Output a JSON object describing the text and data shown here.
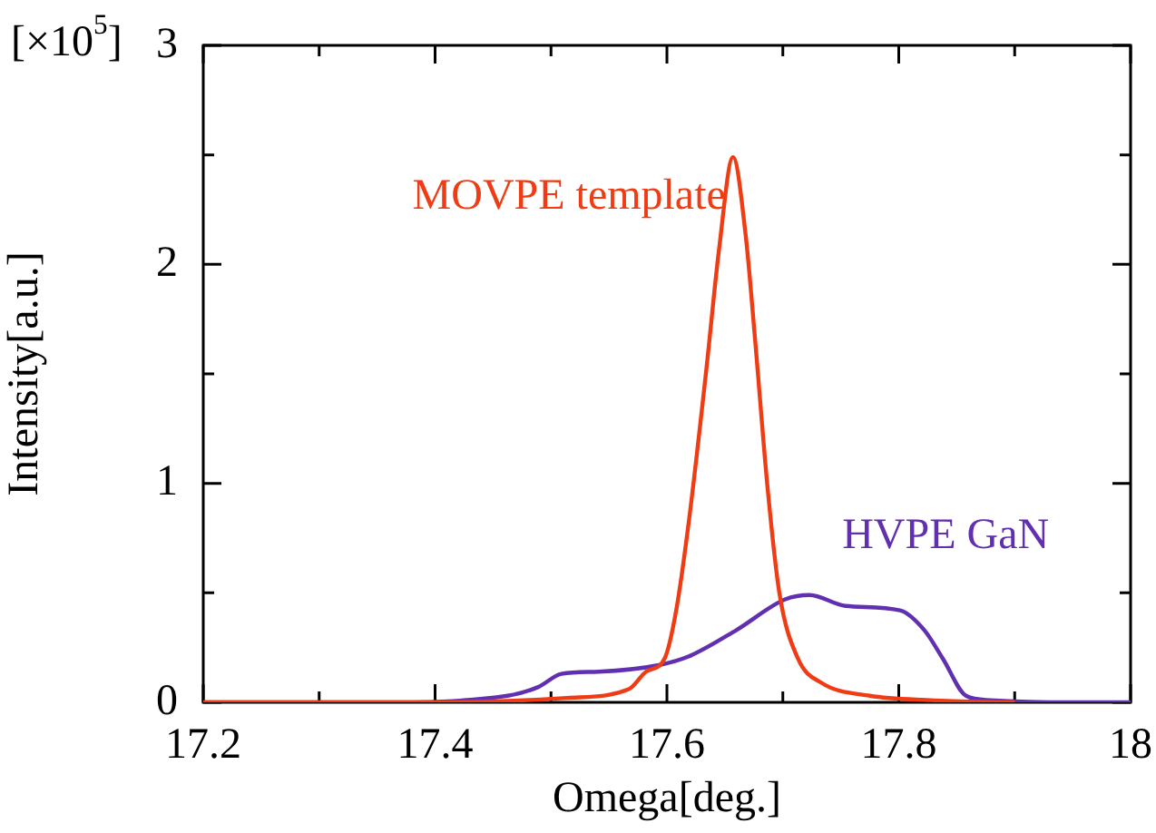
{
  "chart_data": {
    "type": "line",
    "xlabel": "Omega[deg.]",
    "ylabel": "Intensity[a.u.]",
    "annotations": [
      "[×10$^{5}$]"
    ],
    "xlim": [
      17.2,
      18
    ],
    "ylim": [
      0,
      3
    ],
    "xticks": [
      {
        "value": 17.2,
        "label": "17.2"
      },
      {
        "value": 17.3,
        "label": null
      },
      {
        "value": 17.4,
        "label": "17.4"
      },
      {
        "value": 17.5,
        "label": null
      },
      {
        "value": 17.6,
        "label": "17.6"
      },
      {
        "value": 17.7,
        "label": null
      },
      {
        "value": 17.8,
        "label": "17.8"
      },
      {
        "value": 17.9,
        "label": null
      },
      18
    ],
    "yticks": [
      0,
      {
        "value": 0.5,
        "label": null
      },
      1,
      {
        "value": 1.5,
        "label": null
      },
      2,
      {
        "value": 2.5,
        "label": null
      },
      3
    ],
    "marker": "none",
    "line_style": "solid",
    "series": [
      {
        "name": "MOVPE template",
        "color": "#f03c14",
        "x": [
          17.2,
          17.4,
          17.514,
          17.567,
          17.582,
          17.598,
          17.608,
          17.619,
          17.634,
          17.645,
          17.657,
          17.668,
          17.676,
          17.687,
          17.697,
          17.713,
          17.733,
          17.775,
          17.827,
          17.9
        ],
        "values": [
          0,
          0,
          0.02,
          0.06,
          0.14,
          0.2,
          0.42,
          0.83,
          1.52,
          2.07,
          2.49,
          2.13,
          1.66,
          0.97,
          0.5,
          0.2,
          0.09,
          0.03,
          0.01,
          0
        ]
      },
      {
        "name": "HVPE GaN",
        "color": "#6030b0",
        "x": [
          17.2,
          17.35,
          17.4625,
          17.489,
          17.509,
          17.541,
          17.593,
          17.619,
          17.66,
          17.702,
          17.723,
          17.754,
          17.801,
          17.822,
          17.838,
          17.858,
          17.879,
          17.95,
          18
        ],
        "values": [
          0,
          0,
          0.03,
          0.07,
          0.13,
          0.14,
          0.17,
          0.21,
          0.33,
          0.47,
          0.49,
          0.44,
          0.42,
          0.33,
          0.2,
          0.03,
          0.01,
          0,
          0
        ]
      }
    ]
  }
}
